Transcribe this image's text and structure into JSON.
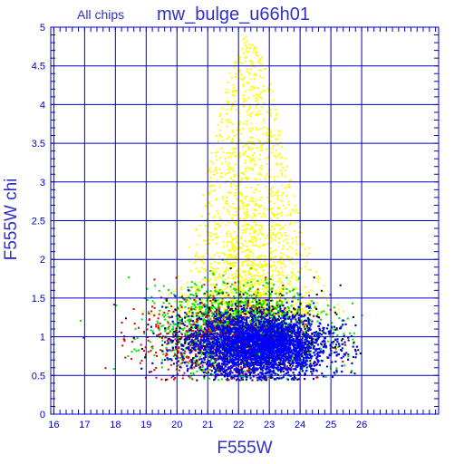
{
  "chart_data": {
    "type": "scatter",
    "header_left": "All chips",
    "title": "mw_bulge_u66h01",
    "xlabel": "F555W",
    "ylabel": "F555W chi",
    "xlim": [
      15.9,
      28.5
    ],
    "ylim": [
      0,
      5
    ],
    "x_ticks": [
      "16",
      "17",
      "18",
      "19",
      "20",
      "21",
      "22",
      "23",
      "24",
      "25",
      "26"
    ],
    "y_ticks": [
      "0",
      "0.5",
      "1",
      "1.5",
      "2",
      "2.5",
      "3",
      "3.5",
      "4",
      "4.5",
      "5"
    ],
    "grid": true,
    "minor_ticks": true,
    "colors": {
      "axis": "#0000c8",
      "text": "#3030c8",
      "background": "#ffffff"
    },
    "series_note": "Dense point cloud; values summarized as distributions per series",
    "series": [
      {
        "color": "#ffff00",
        "count": 1800,
        "x_range": [
          18.8,
          25.6
        ],
        "x_center": 22.3,
        "x_spread": 1.55,
        "y_base": 1.3,
        "y_spread_max": 3.6,
        "y_mode": "high-scatter"
      },
      {
        "color": "#00e000",
        "count": 1700,
        "x_range": [
          16.8,
          26.0
        ],
        "x_center": 22.0,
        "x_spread": 2.2,
        "y_center": 1.08,
        "y_spread": 0.28,
        "y_mode": "band"
      },
      {
        "color": "#e00000",
        "count": 700,
        "x_range": [
          16.4,
          26.0
        ],
        "x_center": 21.5,
        "x_spread": 2.3,
        "y_center": 0.98,
        "y_spread": 0.28,
        "y_mode": "band"
      },
      {
        "color": "#000000",
        "count": 600,
        "x_range": [
          16.5,
          26.0
        ],
        "x_center": 22.5,
        "x_spread": 2.3,
        "y_center": 0.95,
        "y_spread": 0.25,
        "y_mode": "band"
      },
      {
        "color": "#0000ff",
        "count": 5200,
        "x_range": [
          16.9,
          25.9
        ],
        "x_center": 22.6,
        "x_spread": 1.9,
        "y_center": 0.9,
        "y_spread": 0.2,
        "y_mode": "band"
      }
    ]
  }
}
